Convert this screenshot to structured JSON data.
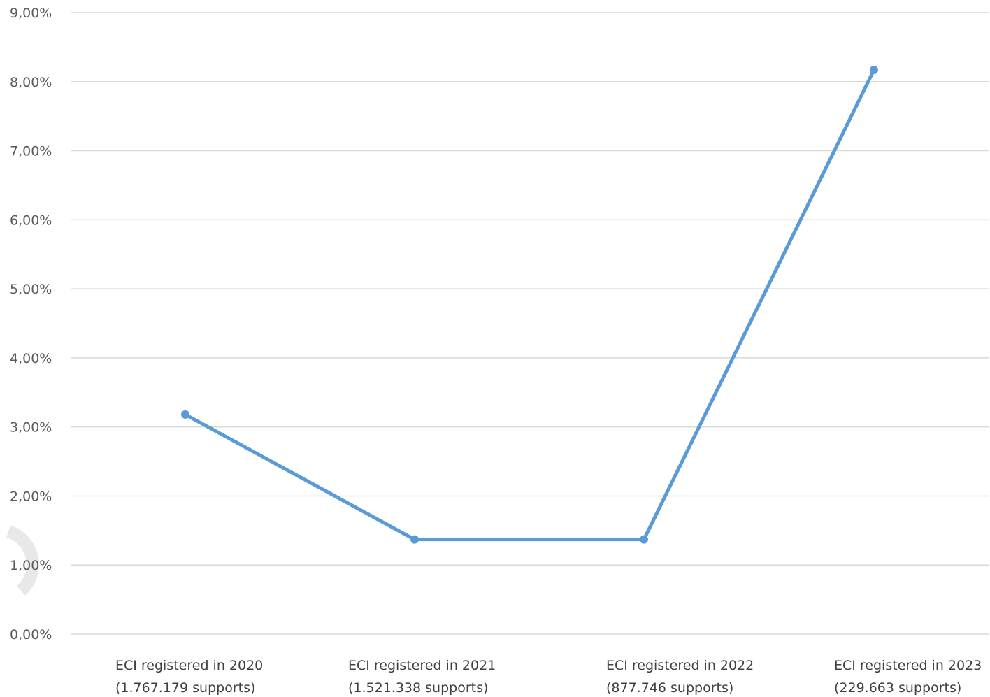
{
  "chart_data": {
    "type": "line",
    "categories": [
      [
        "ECI registered in 2020",
        "(1.767.179 supports)"
      ],
      [
        "ECI registered in 2021",
        "(1.521.338  supports)"
      ],
      [
        "ECI registered in 2022",
        "(877.746  supports)"
      ],
      [
        "ECI registered in 2023",
        "(229.663  supports)"
      ]
    ],
    "series": [
      {
        "values": [
          3.18,
          1.37,
          1.37,
          8.17
        ],
        "color": "#5b9bd5"
      }
    ],
    "ylim": [
      0,
      9
    ],
    "yticks": [
      0,
      1,
      2,
      3,
      4,
      5,
      6,
      7,
      8,
      9
    ],
    "ytick_labels": [
      "0,00%",
      "1,00%",
      "2,00%",
      "3,00%",
      "4,00%",
      "5,00%",
      "6,00%",
      "7,00%",
      "8,00%",
      "9,00%"
    ],
    "grid": true,
    "legend": "none",
    "gridline_color": "#d9d9d9",
    "label_color": "#595959"
  }
}
